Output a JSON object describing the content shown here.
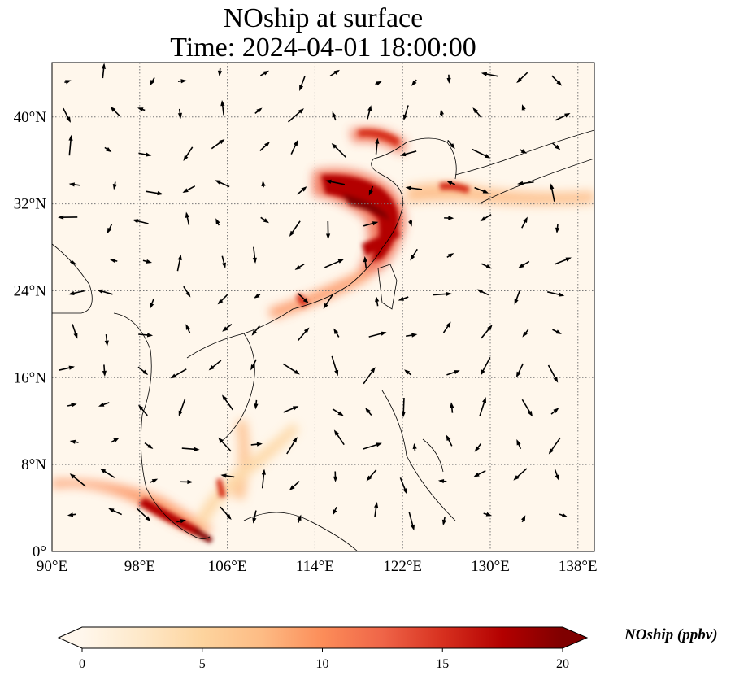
{
  "map": {
    "title_line1": "NOship at surface",
    "title_line2": "Time: 2024-04-01 18:00:00",
    "lon_range": [
      90,
      139.5
    ],
    "lat_range": [
      0,
      45
    ],
    "lon_ticks": [
      "90°E",
      "98°E",
      "106°E",
      "114°E",
      "122°E",
      "130°E",
      "138°E"
    ],
    "lat_ticks": [
      "0°",
      "8°N",
      "16°N",
      "24°N",
      "32°N",
      "40°N"
    ],
    "gridlines": true
  },
  "colorbar": {
    "label": "NOship (ppbv)",
    "ticks": [
      "0",
      "5",
      "10",
      "15",
      "20"
    ],
    "range": [
      0,
      20
    ],
    "extend": "both",
    "colormap": "OrRd",
    "colors": [
      "#fff7ec",
      "#fee8c8",
      "#fdd49e",
      "#fdbb84",
      "#fc8d59",
      "#ef6548",
      "#d7301f",
      "#b30000",
      "#7f0000"
    ]
  }
}
